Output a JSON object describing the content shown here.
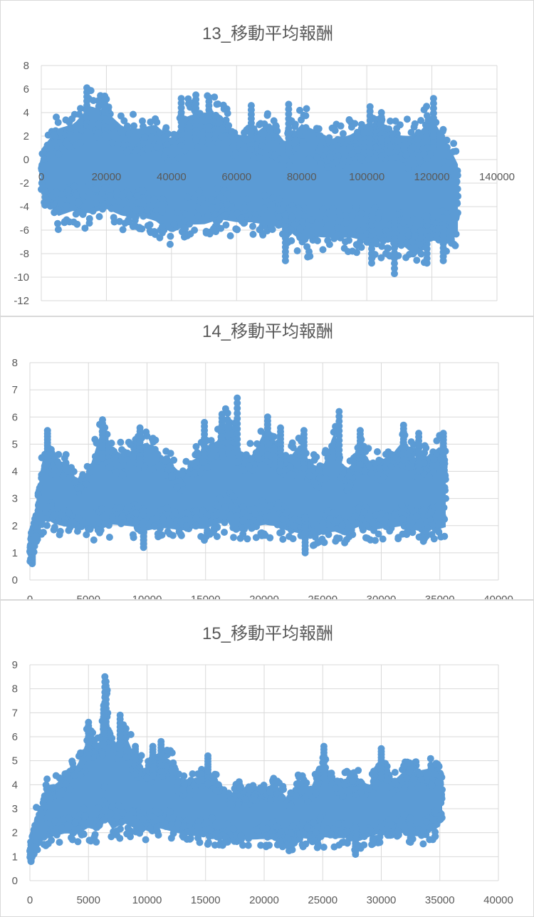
{
  "chart_data": [
    {
      "type": "scatter",
      "title": "13_移動平均報酬",
      "xlabel": "",
      "ylabel": "",
      "xlim": [
        0,
        140000
      ],
      "ylim": [
        -12,
        8
      ],
      "xticks": [
        0,
        20000,
        40000,
        60000,
        80000,
        100000,
        120000,
        140000
      ],
      "yticks": [
        -12,
        -10,
        -8,
        -6,
        -4,
        -2,
        0,
        2,
        4,
        6,
        8
      ],
      "grid": true,
      "marker_color": "#5b9bd5",
      "x_data_max": 128000,
      "envelope": {
        "x": [
          0,
          5000,
          10000,
          15000,
          20000,
          25000,
          30000,
          35000,
          40000,
          45000,
          50000,
          55000,
          60000,
          65000,
          70000,
          75000,
          80000,
          85000,
          90000,
          95000,
          100000,
          105000,
          110000,
          115000,
          120000,
          125000,
          128000
        ],
        "upper": [
          1.5,
          3.8,
          4.2,
          6.0,
          5.4,
          4.0,
          3.8,
          4.3,
          3.0,
          5.2,
          5.5,
          5.3,
          3.3,
          3.2,
          4.6,
          2.6,
          4.6,
          3.8,
          3.0,
          3.5,
          4.5,
          4.0,
          3.5,
          3.6,
          5.2,
          2.6,
          0.5
        ],
        "lower": [
          -3.5,
          -6.0,
          -5.5,
          -6.0,
          -5.5,
          -6.0,
          -6.0,
          -6.5,
          -7.5,
          -7.0,
          -7.0,
          -6.5,
          -6.5,
          -6.5,
          -7.0,
          -7.0,
          -8.5,
          -8.0,
          -8.0,
          -8.0,
          -8.5,
          -8.5,
          -8.5,
          -9.8,
          -8.5,
          -8.5,
          -7.0
        ]
      },
      "peaks": [
        [
          14000,
          6.1
        ],
        [
          19500,
          5.4
        ],
        [
          43000,
          5.2
        ],
        [
          47500,
          5.5
        ],
        [
          51500,
          5.3
        ],
        [
          64500,
          4.6
        ],
        [
          76000,
          4.7
        ],
        [
          101000,
          4.5
        ],
        [
          104500,
          4.0
        ],
        [
          120500,
          5.2
        ],
        [
          75000,
          -8.6
        ],
        [
          101500,
          -8.8
        ],
        [
          108500,
          -9.7
        ],
        [
          118500,
          -8.8
        ],
        [
          123500,
          -8.6
        ]
      ]
    },
    {
      "type": "scatter",
      "title": "14_移動平均報酬",
      "xlabel": "",
      "ylabel": "",
      "xlim": [
        0,
        40000
      ],
      "ylim": [
        0,
        8
      ],
      "xticks": [
        0,
        5000,
        10000,
        15000,
        20000,
        25000,
        30000,
        35000,
        40000
      ],
      "yticks": [
        0,
        1,
        2,
        3,
        4,
        5,
        6,
        7,
        8
      ],
      "grid": true,
      "marker_color": "#5b9bd5",
      "x_data_max": 35500,
      "envelope": {
        "x": [
          0,
          500,
          1000,
          1500,
          2000,
          3000,
          4000,
          5000,
          6000,
          7000,
          8000,
          9000,
          10000,
          11000,
          12000,
          13000,
          14000,
          15000,
          16000,
          17000,
          18000,
          19000,
          20000,
          21000,
          22000,
          23000,
          24000,
          25000,
          26000,
          27000,
          28000,
          29000,
          30000,
          31000,
          32000,
          33000,
          34000,
          35000,
          35500
        ],
        "upper": [
          1.6,
          2.5,
          4.8,
          5.5,
          4.8,
          4.7,
          4.0,
          4.3,
          5.9,
          5.3,
          5.0,
          5.3,
          5.6,
          5.0,
          4.7,
          4.2,
          4.8,
          5.4,
          5.6,
          6.7,
          5.2,
          5.0,
          6.0,
          5.5,
          4.8,
          5.5,
          4.7,
          4.5,
          6.1,
          4.0,
          5.5,
          4.8,
          4.8,
          5.1,
          5.7,
          4.8,
          5.0,
          5.4,
          5.2
        ],
        "lower": [
          0.6,
          1.0,
          1.7,
          1.8,
          1.7,
          1.6,
          1.6,
          1.6,
          1.3,
          1.6,
          1.6,
          1.5,
          1.3,
          1.5,
          1.5,
          1.5,
          1.5,
          1.4,
          1.6,
          1.5,
          1.4,
          1.5,
          1.5,
          1.5,
          1.4,
          1.2,
          1.2,
          1.3,
          1.2,
          1.3,
          1.5,
          1.4,
          1.5,
          1.5,
          1.5,
          1.4,
          1.4,
          1.4,
          1.5
        ]
      },
      "peaks": [
        [
          1500,
          5.5
        ],
        [
          6200,
          5.9
        ],
        [
          9400,
          5.6
        ],
        [
          14900,
          5.8
        ],
        [
          16400,
          6.1
        ],
        [
          17700,
          6.7
        ],
        [
          20300,
          6.0
        ],
        [
          21400,
          5.6
        ],
        [
          23400,
          5.5
        ],
        [
          26400,
          6.2
        ],
        [
          28200,
          5.5
        ],
        [
          31900,
          5.7
        ],
        [
          33200,
          5.4
        ],
        [
          35300,
          5.4
        ],
        [
          200,
          0.6
        ],
        [
          9700,
          1.2
        ],
        [
          23500,
          1.0
        ]
      ]
    },
    {
      "type": "scatter",
      "title": "15_移動平均報酬",
      "xlabel": "",
      "ylabel": "",
      "xlim": [
        0,
        40000
      ],
      "ylim": [
        0,
        9
      ],
      "xticks": [
        0,
        5000,
        10000,
        15000,
        20000,
        25000,
        30000,
        35000,
        40000
      ],
      "yticks": [
        0,
        1,
        2,
        3,
        4,
        5,
        6,
        7,
        8,
        9
      ],
      "grid": true,
      "marker_color": "#5b9bd5",
      "x_data_max": 35200,
      "envelope": {
        "x": [
          0,
          500,
          1000,
          1500,
          2000,
          3000,
          4000,
          5000,
          6000,
          6500,
          7000,
          8000,
          9000,
          10000,
          11000,
          12000,
          13000,
          14000,
          15000,
          16000,
          17000,
          18000,
          19000,
          20000,
          21000,
          22000,
          23000,
          24000,
          25000,
          26000,
          27000,
          28000,
          29000,
          30000,
          31000,
          32000,
          33000,
          34000,
          35000,
          35200
        ],
        "upper": [
          1.4,
          3.1,
          3.0,
          4.4,
          4.3,
          4.7,
          5.2,
          6.6,
          6.2,
          8.6,
          6.0,
          6.9,
          5.6,
          4.9,
          5.8,
          5.5,
          4.4,
          4.5,
          5.2,
          4.6,
          3.9,
          4.2,
          4.0,
          4.2,
          4.4,
          3.7,
          4.6,
          4.2,
          5.6,
          4.4,
          4.6,
          4.7,
          4.3,
          5.5,
          4.5,
          5.0,
          5.0,
          5.1,
          5.2,
          4.8
        ],
        "lower": [
          0.8,
          1.0,
          1.5,
          1.4,
          1.5,
          1.6,
          1.5,
          1.6,
          1.5,
          1.8,
          1.6,
          1.8,
          1.7,
          1.7,
          1.7,
          1.6,
          1.6,
          1.5,
          1.5,
          1.4,
          1.5,
          1.4,
          1.4,
          1.4,
          1.5,
          1.2,
          1.4,
          1.4,
          1.3,
          1.4,
          1.4,
          1.2,
          1.5,
          1.5,
          1.5,
          1.6,
          1.4,
          1.5,
          2.0,
          2.1
        ]
      },
      "peaks": [
        [
          5000,
          6.6
        ],
        [
          6400,
          8.5
        ],
        [
          6500,
          8.3
        ],
        [
          6300,
          7.3
        ],
        [
          7700,
          6.9
        ],
        [
          9000,
          5.6
        ],
        [
          10500,
          5.6
        ],
        [
          11200,
          5.8
        ],
        [
          15200,
          5.2
        ],
        [
          25100,
          5.6
        ],
        [
          30000,
          5.5
        ],
        [
          100,
          0.8
        ],
        [
          27800,
          1.1
        ],
        [
          32500,
          1.6
        ]
      ]
    }
  ]
}
